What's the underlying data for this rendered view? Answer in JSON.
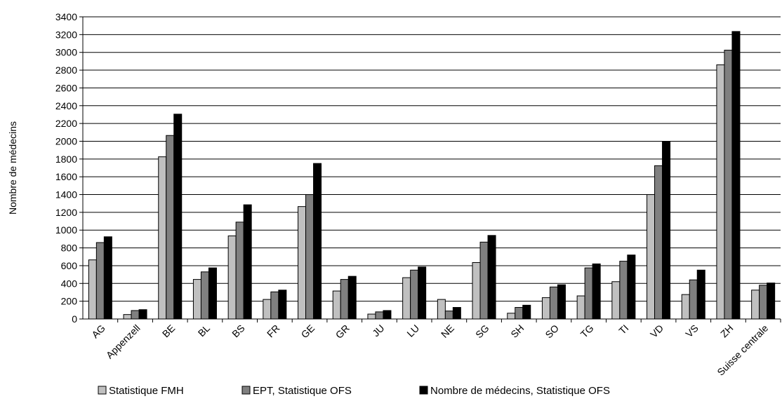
{
  "chart_data": {
    "type": "bar",
    "ylabel": "Nombre de médecins",
    "xlabel": "",
    "ylim": [
      0,
      3400
    ],
    "ytick_step": 200,
    "grid": true,
    "legend_position": "bottom",
    "categories": [
      "AG",
      "Appenzell",
      "BE",
      "BL",
      "BS",
      "FR",
      "GE",
      "GR",
      "JU",
      "LU",
      "NE",
      "SG",
      "SH",
      "SO",
      "TG",
      "TI",
      "VD",
      "VS",
      "ZH",
      "Suisse centrale"
    ],
    "series": [
      {
        "name": "Statistique FMH",
        "color": "#c0c0c0",
        "values": [
          665,
          50,
          1825,
          445,
          935,
          220,
          1265,
          315,
          55,
          465,
          220,
          635,
          65,
          240,
          260,
          420,
          1400,
          275,
          2860,
          325
        ]
      },
      {
        "name": "EPT, Statistique OFS",
        "color": "#808080",
        "values": [
          860,
          95,
          2065,
          530,
          1090,
          305,
          1400,
          445,
          80,
          550,
          90,
          865,
          130,
          360,
          575,
          650,
          1725,
          440,
          3025,
          380
        ]
      },
      {
        "name": "Nombre de médecins, Statistique OFS",
        "color": "#000000",
        "values": [
          925,
          105,
          2305,
          575,
          1285,
          325,
          1750,
          480,
          95,
          585,
          130,
          940,
          155,
          385,
          620,
          720,
          1995,
          550,
          3235,
          405
        ]
      }
    ]
  }
}
